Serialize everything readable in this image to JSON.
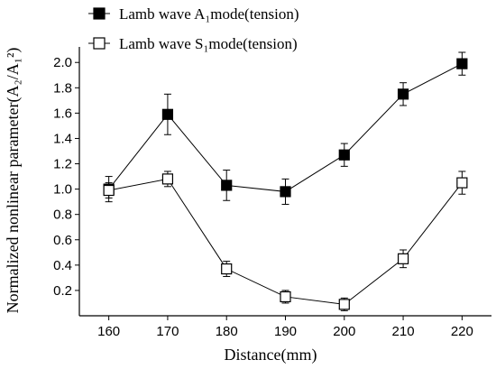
{
  "chart_data": {
    "type": "line",
    "xlabel": "Distance(mm)",
    "ylabel": "Normalized nonlinear parameter(A₂/A₁²)",
    "x": [
      160,
      170,
      180,
      190,
      200,
      210,
      220
    ],
    "xlim": [
      155,
      225
    ],
    "ylim": [
      0,
      2.08
    ],
    "y_ticks": [
      0.2,
      0.4,
      0.6,
      0.8,
      1.0,
      1.2,
      1.4,
      1.6,
      1.8,
      2.0
    ],
    "y_tick_labels": [
      "0.2",
      "0.4",
      "0.6",
      "0.8",
      "1.0",
      "1.2",
      "1.4",
      "1.6",
      "1.8",
      "2.0"
    ],
    "x_ticks": [
      160,
      170,
      180,
      190,
      200,
      210,
      220
    ],
    "x_tick_labels": [
      "160",
      "170",
      "180",
      "190",
      "200",
      "210",
      "220"
    ],
    "legend_position": "top-center",
    "grid": false,
    "series": [
      {
        "name": "Lamb wave A₁mode(tension)",
        "marker": "filled-square",
        "color": "#000000",
        "values": [
          1.0,
          1.59,
          1.03,
          0.98,
          1.27,
          1.75,
          1.99
        ],
        "error": [
          0.1,
          0.16,
          0.12,
          0.1,
          0.09,
          0.09,
          0.09
        ]
      },
      {
        "name": "Lamb wave S₁mode(tension)",
        "marker": "open-square",
        "color": "#000000",
        "values": [
          0.99,
          1.08,
          0.37,
          0.15,
          0.09,
          0.45,
          1.05
        ],
        "error": [
          0.06,
          0.06,
          0.06,
          0.05,
          0.05,
          0.07,
          0.09
        ]
      }
    ]
  }
}
